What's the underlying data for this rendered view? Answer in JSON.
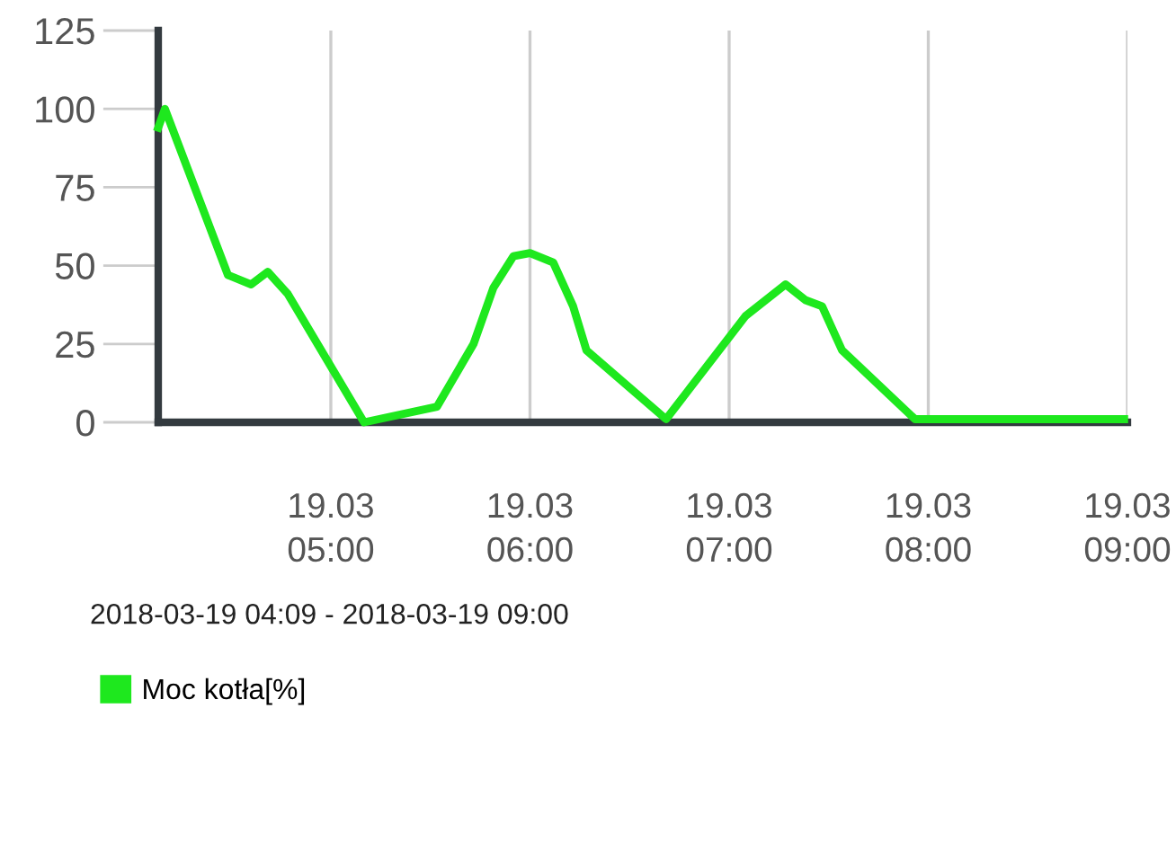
{
  "chart_data": {
    "type": "line",
    "x": [
      "2018-03-19T04:08",
      "2018-03-19T04:10",
      "2018-03-19T04:29",
      "2018-03-19T04:36",
      "2018-03-19T04:41",
      "2018-03-19T04:47",
      "2018-03-19T05:10",
      "2018-03-19T05:32",
      "2018-03-19T05:43",
      "2018-03-19T05:49",
      "2018-03-19T05:55",
      "2018-03-19T06:00",
      "2018-03-19T06:07",
      "2018-03-19T06:13",
      "2018-03-19T06:17",
      "2018-03-19T06:41",
      "2018-03-19T07:05",
      "2018-03-19T07:17",
      "2018-03-19T07:23",
      "2018-03-19T07:28",
      "2018-03-19T07:34",
      "2018-03-19T07:56",
      "2018-03-19T08:59"
    ],
    "series": [
      {
        "name": "Moc kotła[%]",
        "color": "#1ee81e",
        "values": [
          94,
          100,
          47,
          44,
          48,
          41,
          0,
          5,
          25,
          43,
          53,
          54,
          51,
          37,
          23,
          1,
          34,
          44,
          39,
          37,
          23,
          1,
          1
        ]
      }
    ],
    "xlim": [
      "2018-03-19T04:08",
      "2018-03-19T09:00"
    ],
    "xticks": [
      {
        "value": "2018-03-19T05:00",
        "label": "19.03\n05:00"
      },
      {
        "value": "2018-03-19T06:00",
        "label": "19.03\n06:00"
      },
      {
        "value": "2018-03-19T07:00",
        "label": "19.03\n07:00"
      },
      {
        "value": "2018-03-19T08:00",
        "label": "19.03\n08:00"
      },
      {
        "value": "2018-03-19T09:00",
        "label": "19.03\n09:00"
      }
    ],
    "ylim": [
      0,
      125
    ],
    "yticks": [
      0,
      25,
      50,
      75,
      100,
      125
    ],
    "grid": "x",
    "legend": "bottom left",
    "marker": "none",
    "line_style": "solid",
    "annotations": [
      "2018-03-19 04:09 - 2018-03-19 09:00"
    ]
  }
}
